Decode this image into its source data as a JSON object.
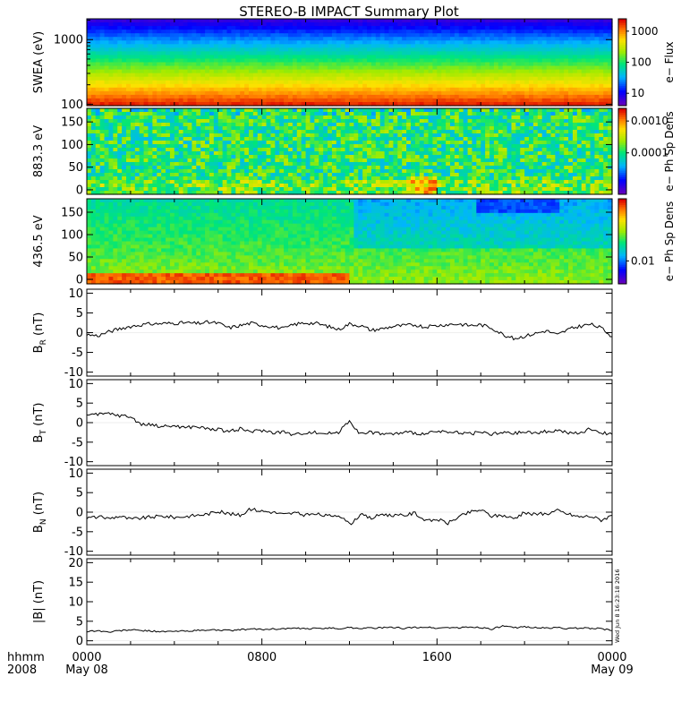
{
  "title": "STEREO-B IMPACT Summary Plot",
  "footer": {
    "time_label": "hhmm",
    "year_label": "2008",
    "start_date": "May 08",
    "end_date": "May 09",
    "x_ticks": [
      "0000",
      "0800",
      "1600",
      "0000"
    ],
    "stamp": "Wed Jun  8 16:23:18 2016"
  },
  "chart_data": [
    {
      "type": "heatmap",
      "id": "swea",
      "ylabel": "SWEA (eV)",
      "yscale": "log",
      "ylim": [
        95,
        2100
      ],
      "yticks": [
        {
          "v": 100,
          "t": "100"
        },
        {
          "v": 1000,
          "t": "1000"
        }
      ],
      "colorbar": {
        "label": "e− Flux",
        "scale": "log",
        "range": [
          4,
          2500
        ],
        "ticks": [
          {
            "v": 10,
            "t": "10"
          },
          {
            "v": 100,
            "t": "100"
          },
          {
            "v": 1000,
            "t": "1000"
          }
        ]
      }
    },
    {
      "type": "heatmap",
      "id": "pad883",
      "ylabel": "883.3 eV",
      "ylim": [
        -10,
        180
      ],
      "yticks": [
        {
          "v": 0,
          "t": "0"
        },
        {
          "v": 50,
          "t": "50"
        },
        {
          "v": 100,
          "t": "100"
        },
        {
          "v": 150,
          "t": "150"
        }
      ],
      "colorbar": {
        "label": "e− Ph Sp Dens",
        "scale": "log",
        "range": [
          5e-06,
          0.0025
        ],
        "ticks": [
          {
            "v": 0.0001,
            "t": "0.0001"
          },
          {
            "v": 0.001,
            "t": "0.0010"
          }
        ]
      }
    },
    {
      "type": "heatmap",
      "id": "pad436",
      "ylabel": "436.5 eV",
      "ylim": [
        -10,
        180
      ],
      "yticks": [
        {
          "v": 0,
          "t": "0"
        },
        {
          "v": 50,
          "t": "50"
        },
        {
          "v": 100,
          "t": "100"
        },
        {
          "v": 150,
          "t": "150"
        }
      ],
      "colorbar": {
        "label": "e− Ph Sp Dens",
        "scale": "log",
        "range": [
          0.004,
          0.12
        ],
        "ticks": [
          {
            "v": 0.01,
            "t": "0.01"
          }
        ]
      }
    },
    {
      "type": "line",
      "id": "br",
      "ylabel": "B",
      "ylabel_sub": "R",
      "ylabel_unit": "(nT)",
      "ylim": [
        -11,
        11
      ],
      "yticks": [
        -10,
        -5,
        0,
        5,
        10
      ],
      "x_hours": [
        0,
        0.5,
        1,
        1.5,
        2,
        2.5,
        3,
        3.5,
        4,
        4.5,
        5,
        5.5,
        6,
        6.5,
        7,
        7.5,
        8,
        8.5,
        9,
        9.5,
        10,
        10.5,
        11,
        11.5,
        12,
        12.5,
        13,
        13.5,
        14,
        14.5,
        15,
        15.5,
        16,
        16.5,
        17,
        17.5,
        18,
        18.5,
        19,
        19.5,
        20,
        20.5,
        21,
        21.5,
        22,
        22.5,
        23,
        23.5,
        24
      ],
      "values": [
        -0.5,
        -0.8,
        0.2,
        1.0,
        1.6,
        2.0,
        2.2,
        2.3,
        2.4,
        2.5,
        2.3,
        2.6,
        2.4,
        1.2,
        1.8,
        2.4,
        1.9,
        1.5,
        1.0,
        2.1,
        2.5,
        2.3,
        1.6,
        0.8,
        2.2,
        1.8,
        0.6,
        1.0,
        1.6,
        1.8,
        2.0,
        1.4,
        1.8,
        2.1,
        2.2,
        1.8,
        2.0,
        1.2,
        -0.4,
        -1.5,
        -0.9,
        -0.2,
        0.5,
        -0.6,
        0.8,
        1.6,
        2.1,
        1.2,
        -1.0
      ]
    },
    {
      "type": "line",
      "id": "bt",
      "ylabel": "B",
      "ylabel_sub": "T",
      "ylabel_unit": "(nT)",
      "ylim": [
        -11,
        11
      ],
      "yticks": [
        -10,
        -5,
        0,
        5,
        10
      ],
      "x_hours": [
        0,
        0.5,
        1,
        1.5,
        2,
        2.5,
        3,
        3.5,
        4,
        4.5,
        5,
        5.5,
        6,
        6.5,
        7,
        7.5,
        8,
        8.5,
        9,
        9.5,
        10,
        10.5,
        11,
        11.5,
        12,
        12.5,
        13,
        13.5,
        14,
        14.5,
        15,
        15.5,
        16,
        16.5,
        17,
        17.5,
        18,
        18.5,
        19,
        19.5,
        20,
        20.5,
        21,
        21.5,
        22,
        22.5,
        23,
        23.5,
        24
      ],
      "values": [
        2.2,
        2.0,
        2.3,
        1.8,
        1.5,
        -0.5,
        -0.6,
        -1.0,
        -0.8,
        -1.3,
        -1.0,
        -1.6,
        -1.8,
        -2.2,
        -1.6,
        -2.3,
        -2.0,
        -2.5,
        -2.4,
        -3.2,
        -2.5,
        -2.6,
        -2.8,
        -2.4,
        0.6,
        -3.0,
        -2.5,
        -2.8,
        -3.0,
        -2.5,
        -2.6,
        -3.0,
        -2.2,
        -2.7,
        -2.4,
        -2.8,
        -2.5,
        -3.0,
        -2.6,
        -2.8,
        -2.4,
        -2.7,
        -2.2,
        -2.0,
        -2.6,
        -2.9,
        -1.5,
        -2.6,
        -3.0
      ]
    },
    {
      "type": "line",
      "id": "bn",
      "ylabel": "B",
      "ylabel_sub": "N",
      "ylabel_unit": "(nT)",
      "ylim": [
        -11,
        11
      ],
      "yticks": [
        -10,
        -5,
        0,
        5,
        10
      ],
      "x_hours": [
        0,
        0.5,
        1,
        1.5,
        2,
        2.5,
        3,
        3.5,
        4,
        4.5,
        5,
        5.5,
        6,
        6.5,
        7,
        7.5,
        8,
        8.5,
        9,
        9.5,
        10,
        10.5,
        11,
        11.5,
        12,
        12.5,
        13,
        13.5,
        14,
        14.5,
        15,
        15.5,
        16,
        16.5,
        17,
        17.5,
        18,
        18.5,
        19,
        19.5,
        20,
        20.5,
        21,
        21.5,
        22,
        22.5,
        23,
        23.5,
        24
      ],
      "values": [
        -1.5,
        -1.2,
        -1.6,
        -1.0,
        -1.8,
        -1.5,
        -1.2,
        -1.0,
        -1.3,
        -1.1,
        -0.8,
        -0.5,
        0.2,
        -0.4,
        -0.8,
        0.8,
        0.3,
        0.0,
        -0.6,
        -0.2,
        -0.8,
        -0.5,
        -1.0,
        -0.6,
        -3.2,
        -0.6,
        -1.6,
        -0.4,
        -1.0,
        -0.8,
        -0.2,
        -2.4,
        -1.8,
        -2.8,
        -1.2,
        0.0,
        0.6,
        -1.0,
        -0.8,
        -1.6,
        -0.2,
        -0.6,
        -0.4,
        0.4,
        -0.5,
        -1.2,
        -1.0,
        -2.0,
        -0.8
      ]
    },
    {
      "type": "line",
      "id": "bmag",
      "ylabel": "|B|",
      "ylabel_unit": "(nT)",
      "ylim": [
        -1,
        21
      ],
      "yticks": [
        0,
        5,
        10,
        15,
        20
      ],
      "x_hours": [
        0,
        0.5,
        1,
        1.5,
        2,
        2.5,
        3,
        3.5,
        4,
        4.5,
        5,
        5.5,
        6,
        6.5,
        7,
        7.5,
        8,
        8.5,
        9,
        9.5,
        10,
        10.5,
        11,
        11.5,
        12,
        12.5,
        13,
        13.5,
        14,
        14.5,
        15,
        15.5,
        16,
        16.5,
        17,
        17.5,
        18,
        18.5,
        19,
        19.5,
        20,
        20.5,
        21,
        21.5,
        22,
        22.5,
        23,
        23.5,
        24
      ],
      "values": [
        2.4,
        2.6,
        2.2,
        2.6,
        2.8,
        2.6,
        2.5,
        2.3,
        2.4,
        2.5,
        2.6,
        2.7,
        2.8,
        2.6,
        2.8,
        3.0,
        2.9,
        3.0,
        3.1,
        3.2,
        3.0,
        3.2,
        3.3,
        3.1,
        3.4,
        3.2,
        3.3,
        3.3,
        3.4,
        3.2,
        3.4,
        3.5,
        3.2,
        3.4,
        3.3,
        3.5,
        3.4,
        3.0,
        3.8,
        3.3,
        3.6,
        3.4,
        3.2,
        3.4,
        3.1,
        3.3,
        3.2,
        3.1,
        2.6
      ]
    }
  ]
}
